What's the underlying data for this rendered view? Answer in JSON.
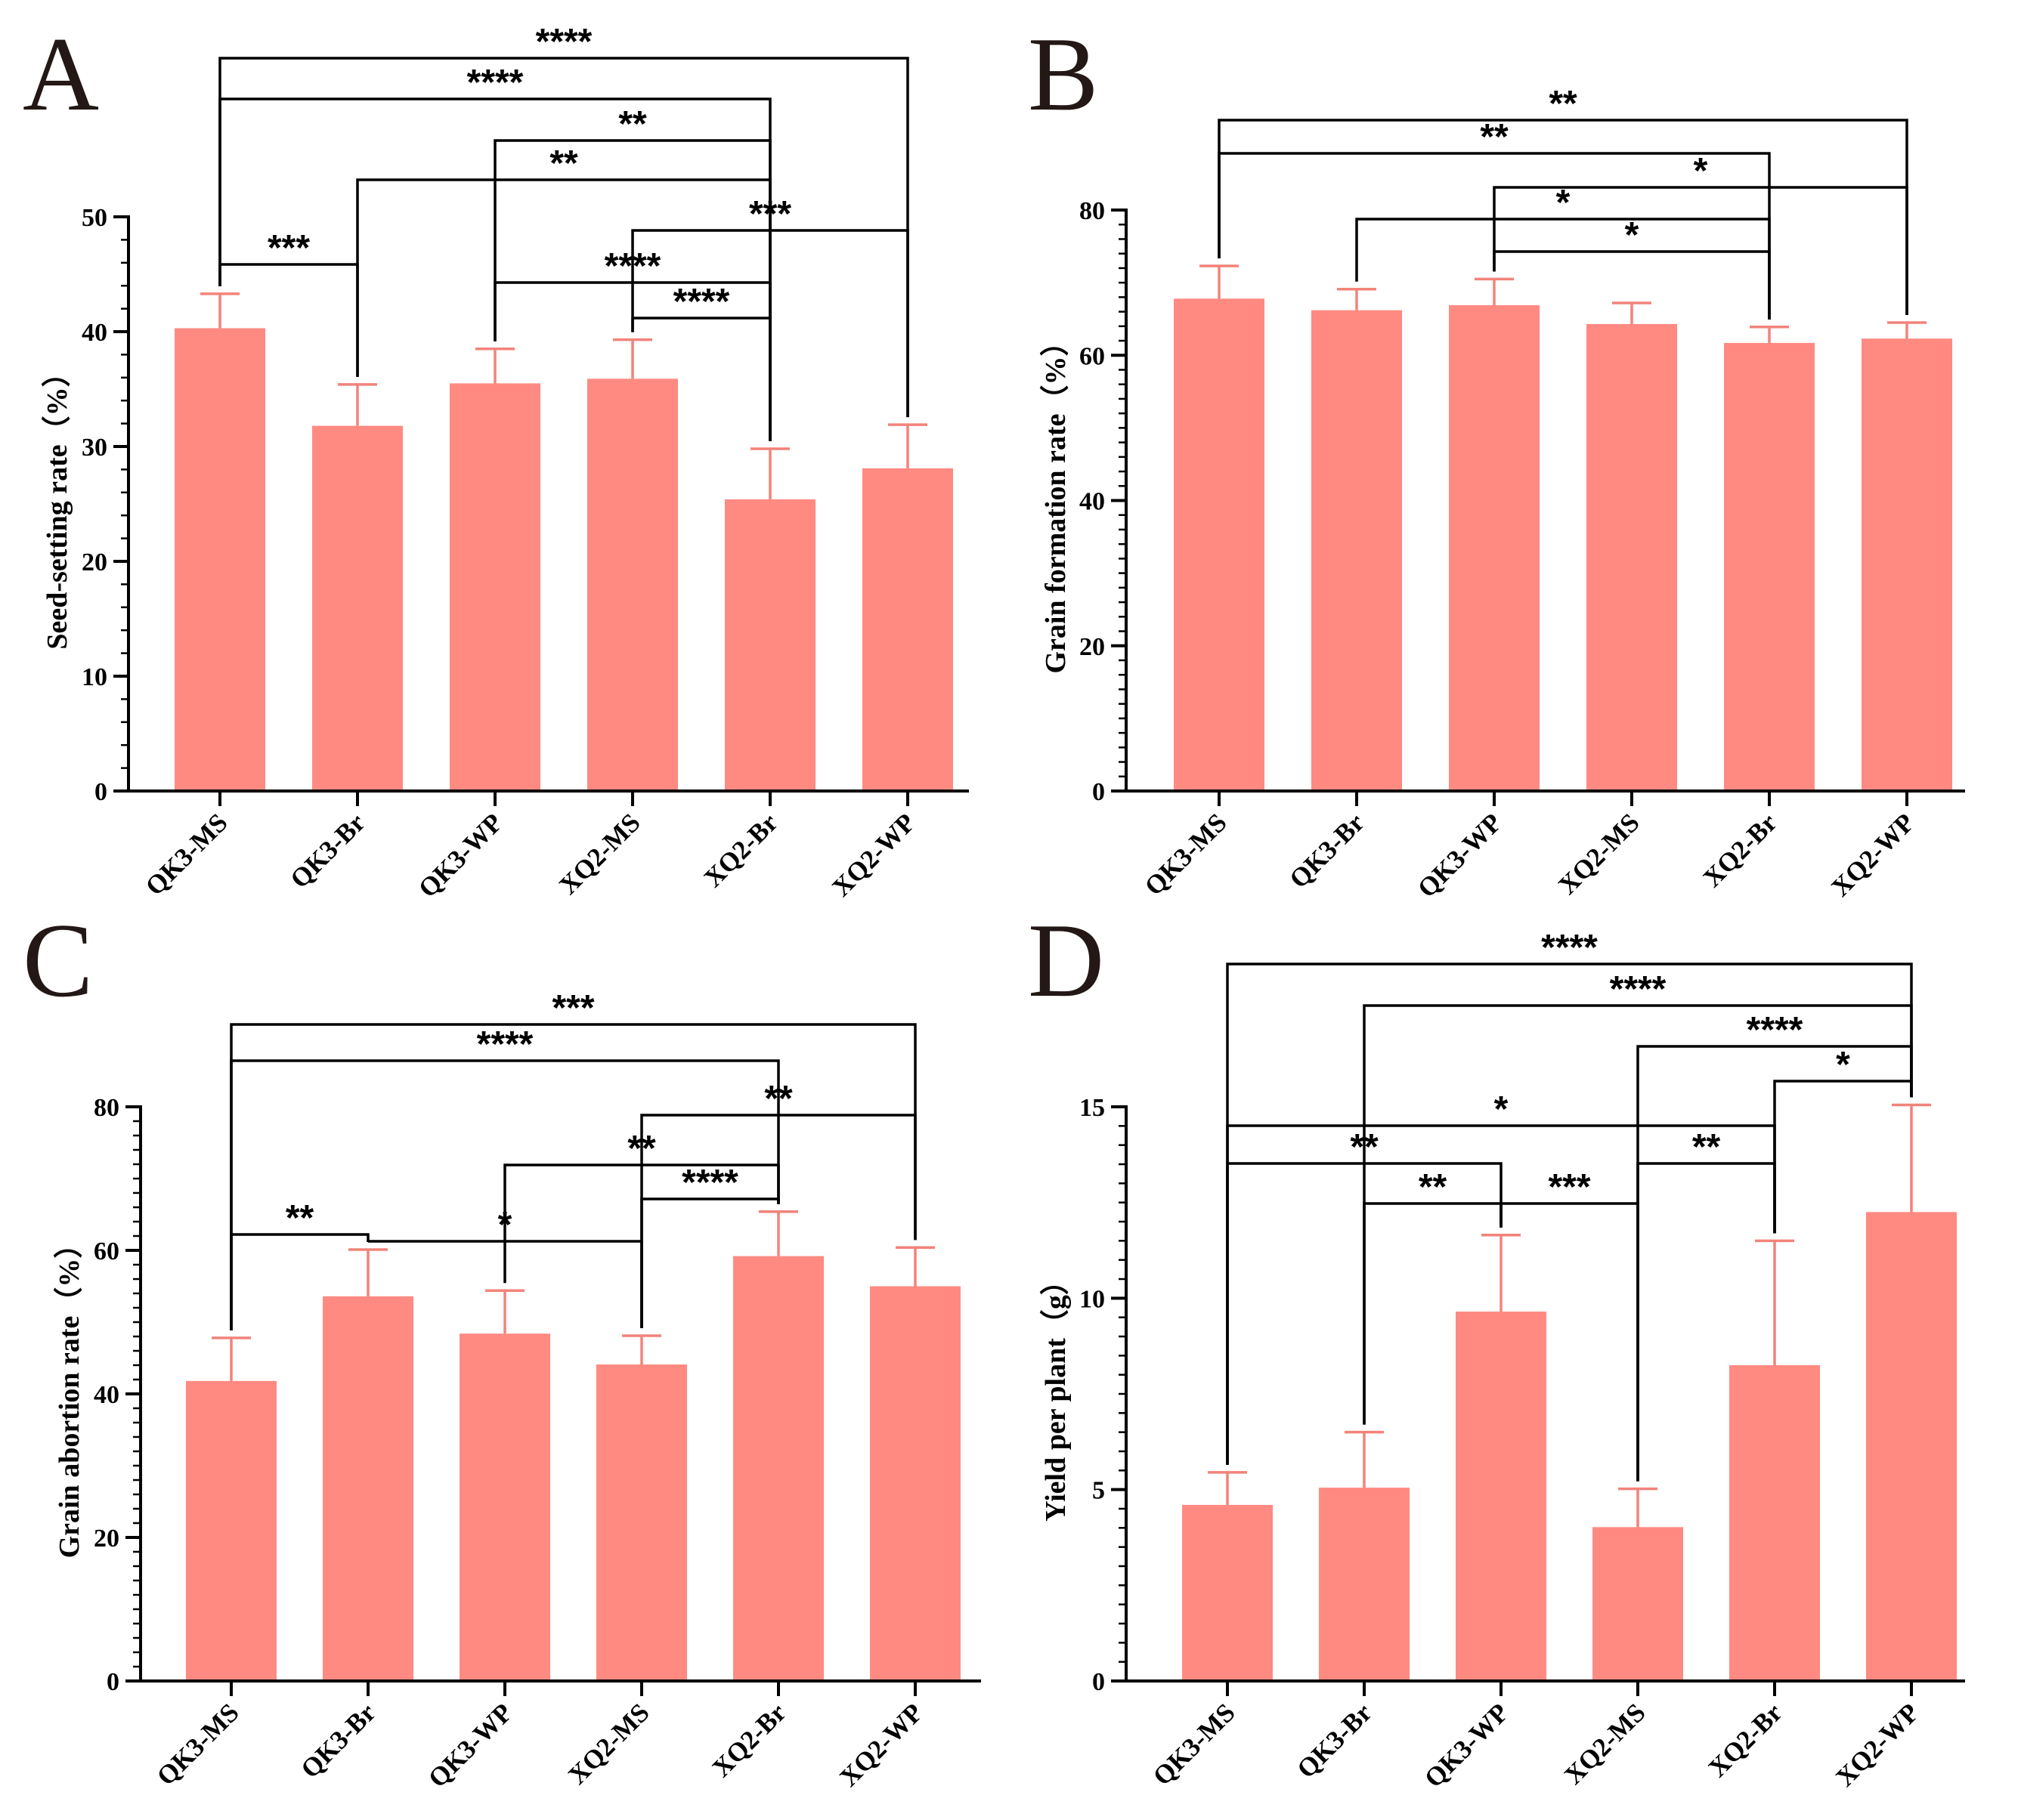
{
  "colors": {
    "bar": "#ff8a82",
    "error_bar": "#f2837a",
    "axis": "#000000"
  },
  "chart_data": [
    {
      "panel": "A",
      "type": "bar",
      "ylabel": "Seed-setting rate（%）",
      "categories": [
        "QK3-MS",
        "QK3-Br",
        "QK3-WP",
        "XQ2-MS",
        "XQ2-Br",
        "XQ2-WP"
      ],
      "values": [
        40.3,
        31.8,
        35.5,
        35.9,
        25.4,
        28.1
      ],
      "errors": [
        3.0,
        3.6,
        3.0,
        3.4,
        4.4,
        3.8
      ],
      "ylim": [
        0,
        50
      ],
      "yticks": [
        0,
        10,
        20,
        30,
        40,
        50
      ],
      "significance": [
        {
          "from": 0,
          "to": 5,
          "label": "****"
        },
        {
          "from": 0,
          "to": 4,
          "label": "****"
        },
        {
          "from": 2,
          "to": 4,
          "label": "**"
        },
        {
          "from": 1,
          "to": 4,
          "label": "**"
        },
        {
          "from": 3,
          "to": 5,
          "label": "***"
        },
        {
          "from": 0,
          "to": 1,
          "label": "***"
        },
        {
          "from": 2,
          "to": 4,
          "label": "****"
        },
        {
          "from": 3,
          "to": 4,
          "label": "****"
        }
      ]
    },
    {
      "panel": "B",
      "type": "bar",
      "ylabel": "Grain formation rate（%）",
      "categories": [
        "QK3-MS",
        "QK3-Br",
        "QK3-WP",
        "XQ2-MS",
        "XQ2-Br",
        "XQ2-WP"
      ],
      "values": [
        67.8,
        66.2,
        66.9,
        64.3,
        61.7,
        62.3
      ],
      "errors": [
        4.5,
        2.9,
        3.6,
        2.9,
        2.2,
        2.2
      ],
      "ylim": [
        0,
        80
      ],
      "yticks": [
        0,
        20,
        40,
        60,
        80
      ],
      "significance": [
        {
          "from": 0,
          "to": 5,
          "label": "**"
        },
        {
          "from": 0,
          "to": 4,
          "label": "**"
        },
        {
          "from": 2,
          "to": 5,
          "label": "*"
        },
        {
          "from": 1,
          "to": 4,
          "label": "*"
        },
        {
          "from": 2,
          "to": 4,
          "label": "*"
        }
      ]
    },
    {
      "panel": "C",
      "type": "bar",
      "ylabel": "Grain abortion rate（%）",
      "categories": [
        "QK3-MS",
        "QK3-Br",
        "QK3-WP",
        "XQ2-MS",
        "XQ2-Br",
        "XQ2-WP"
      ],
      "values": [
        41.8,
        53.6,
        48.4,
        44.1,
        59.2,
        55.0
      ],
      "errors": [
        6.0,
        6.5,
        6.0,
        4.0,
        6.2,
        5.4
      ],
      "ylim": [
        0,
        80
      ],
      "yticks": [
        0,
        20,
        40,
        60,
        80
      ],
      "significance": [
        {
          "from": 0,
          "to": 5,
          "label": "***"
        },
        {
          "from": 0,
          "to": 4,
          "label": "****"
        },
        {
          "from": 3,
          "to": 5,
          "label": "**"
        },
        {
          "from": 2,
          "to": 4,
          "label": "**"
        },
        {
          "from": 3,
          "to": 4,
          "label": "****"
        },
        {
          "from": 0,
          "to": 1,
          "label": "**"
        },
        {
          "from": 1,
          "to": 3,
          "label": "*"
        }
      ]
    },
    {
      "panel": "D",
      "type": "bar",
      "ylabel": "Yield per plant（g）",
      "categories": [
        "QK3-MS",
        "QK3-Br",
        "QK3-WP",
        "XQ2-MS",
        "XQ2-Br",
        "XQ2-WP"
      ],
      "values": [
        4.6,
        5.05,
        9.65,
        4.02,
        8.25,
        12.25
      ],
      "errors": [
        0.85,
        1.45,
        2.0,
        1.0,
        3.25,
        2.8
      ],
      "ylim": [
        0,
        15
      ],
      "yticks": [
        0,
        5,
        10,
        15
      ],
      "significance": [
        {
          "from": 0,
          "to": 5,
          "label": "****"
        },
        {
          "from": 1,
          "to": 5,
          "label": "****"
        },
        {
          "from": 3,
          "to": 5,
          "label": "****"
        },
        {
          "from": 4,
          "to": 5,
          "label": "*"
        },
        {
          "from": 0,
          "to": 4,
          "label": "*"
        },
        {
          "from": 0,
          "to": 2,
          "label": "**"
        },
        {
          "from": 3,
          "to": 4,
          "label": "**"
        },
        {
          "from": 1,
          "to": 2,
          "label": "**"
        },
        {
          "from": 2,
          "to": 3,
          "label": "***"
        }
      ]
    }
  ]
}
